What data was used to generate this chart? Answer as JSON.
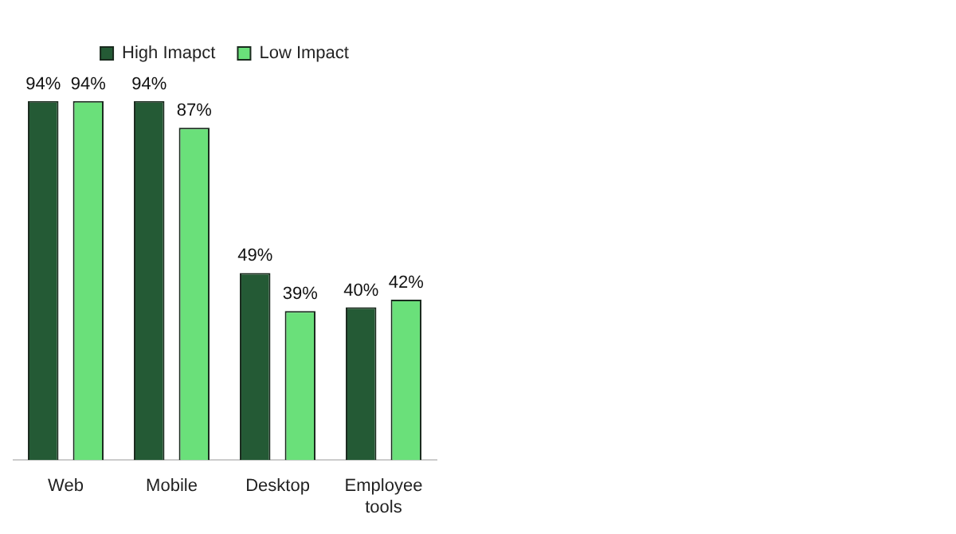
{
  "chart_data": {
    "type": "bar",
    "categories": [
      "Web",
      "Mobile",
      "Desktop",
      "Employee tools"
    ],
    "series": [
      {
        "name": "High Imapct",
        "color": "#245a35",
        "values": [
          94,
          94,
          49,
          40
        ],
        "value_labels": [
          "94%",
          "94%",
          "49%",
          "40%"
        ]
      },
      {
        "name": "Low Impact",
        "color": "#6ae07a",
        "values": [
          94,
          87,
          39,
          42
        ],
        "value_labels": [
          "94%",
          "87%",
          "39%",
          "42%"
        ]
      }
    ],
    "legend": "top",
    "grid": false
  }
}
